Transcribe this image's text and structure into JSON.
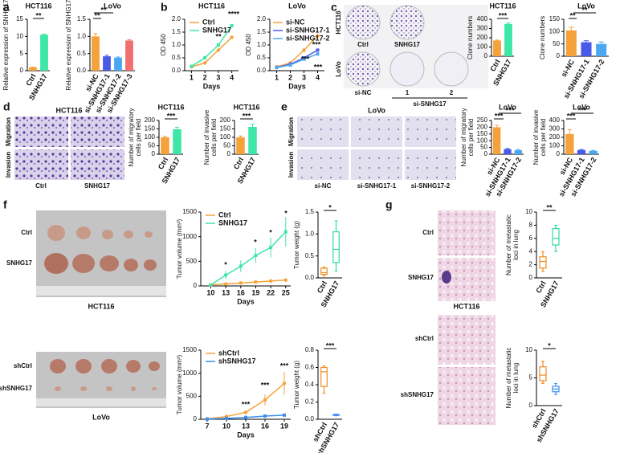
{
  "panel_labels": [
    "a",
    "b",
    "c",
    "d",
    "e",
    "f",
    "g"
  ],
  "images": {
    "c": {
      "rows": [
        "HCT116",
        "LoVo"
      ],
      "cols_top": [
        "Ctrl",
        "SNHG17"
      ],
      "cols_bottom": [
        "si-NC",
        "1",
        "2"
      ],
      "group": "si-SNHG17"
    },
    "d": {
      "title": "HCT116",
      "rows": [
        "Migration",
        "Invasion"
      ],
      "cols": [
        "Ctrl",
        "SNHG17"
      ]
    },
    "e": {
      "title": "LoVo",
      "rows": [
        "Migration",
        "Invasion"
      ],
      "cols": [
        "si-NC",
        "si-SNHG17-1",
        "si-SNHG17-2"
      ]
    },
    "f": {
      "rows_top": [
        "Ctrl",
        "SNHG17"
      ],
      "caption_top": "HCT116",
      "rows_bottom": [
        "shCtrl",
        "shSNHG17"
      ],
      "caption_bottom": "LoVo"
    },
    "g": {
      "rows_top": [
        "Ctrl",
        "SNHG17"
      ],
      "caption_top": "HCT116",
      "rows_bottom": [
        "shCtrl",
        "shSNHG17"
      ]
    }
  },
  "chart_data": [
    {
      "type": "bar",
      "title": "HCT116",
      "ylabel": "Relative expression of SNHG17",
      "categories": [
        "Ctrl",
        "SNHG17"
      ],
      "values": [
        1,
        10.5
      ],
      "errors": [
        0.05,
        0.2
      ],
      "colors": [
        "#f5a23a",
        "#3ee6a8"
      ],
      "ylim": [
        0,
        15
      ],
      "yticks": [
        0,
        5,
        10,
        15
      ],
      "annotations": [
        "**"
      ]
    },
    {
      "type": "bar",
      "title": "LoVo",
      "ylabel": "Relative expression of SNHG17",
      "categories": [
        "si-NC",
        "si-SNHG17-1",
        "si-SNHG17-2",
        "si-SNHG17-3"
      ],
      "values": [
        1.0,
        0.42,
        0.38,
        0.88
      ],
      "errors": [
        0.08,
        0.03,
        0.02,
        0.02
      ],
      "colors": [
        "#f5a23a",
        "#4a5ae8",
        "#4aa8f0",
        "#f07070"
      ],
      "ylim": [
        0,
        1.5
      ],
      "yticks": [
        {
          "value": 0,
          "label": "0.0"
        },
        {
          "value": 0.5,
          "label": "0.5"
        },
        {
          "value": 1,
          "label": "1.0"
        },
        {
          "value": 1.5,
          "label": "1.5"
        }
      ],
      "annotations": [
        "**",
        "**"
      ]
    },
    {
      "type": "line",
      "title": "HCT116",
      "ylabel": "OD 450",
      "xlabel": "Days",
      "x": [
        1,
        2,
        3,
        4
      ],
      "xlim": [
        0.5,
        4.5
      ],
      "xticks": [
        1,
        2,
        3,
        4
      ],
      "series": [
        {
          "name": "Ctrl",
          "color": "#f5a23a",
          "values": [
            0.15,
            0.3,
            0.8,
            1.3
          ],
          "errors": [
            0.02,
            0.03,
            0.04,
            0.05
          ]
        },
        {
          "name": "SNHG17",
          "color": "#3ee6a8",
          "values": [
            0.17,
            0.5,
            1.0,
            1.75
          ],
          "errors": [
            0.02,
            0.03,
            0.04,
            0.05
          ]
        }
      ],
      "ylim": [
        0,
        2
      ],
      "yticks": [
        {
          "value": 0,
          "label": "0.0"
        },
        {
          "value": 0.5,
          "label": "0.5"
        },
        {
          "value": 1,
          "label": "1.0"
        },
        {
          "value": 1.5,
          "label": "1.5"
        },
        {
          "value": 2,
          "label": "2.0"
        }
      ],
      "annotations": [
        "**",
        "****"
      ]
    },
    {
      "type": "line",
      "title": "LoVo",
      "ylabel": "OD 450",
      "xlabel": "Days",
      "x": [
        1,
        2,
        3,
        4
      ],
      "xlim": [
        0.5,
        4.5
      ],
      "xticks": [
        1,
        2,
        3,
        4
      ],
      "series": [
        {
          "name": "si-NC",
          "color": "#f5a23a",
          "values": [
            0.15,
            0.3,
            0.8,
            1.35
          ],
          "errors": [
            0.02,
            0.03,
            0.08,
            0.1
          ]
        },
        {
          "name": "si-SNHG17-1",
          "color": "#4a5ae8",
          "values": [
            0.13,
            0.25,
            0.5,
            0.8
          ],
          "errors": [
            0.02,
            0.03,
            0.05,
            0.06
          ]
        },
        {
          "name": "si-SNHG17-2",
          "color": "#4aa8f0",
          "values": [
            0.12,
            0.22,
            0.45,
            0.65
          ],
          "errors": [
            0.02,
            0.03,
            0.05,
            0.06
          ]
        }
      ],
      "ylim": [
        0,
        2
      ],
      "yticks": [
        {
          "value": 0,
          "label": "0.0"
        },
        {
          "value": 0.5,
          "label": "0.5"
        },
        {
          "value": 1,
          "label": "1.0"
        },
        {
          "value": 1.5,
          "label": "1.5"
        },
        {
          "value": 2,
          "label": "2.0"
        }
      ],
      "annotations": [
        "***",
        "***",
        "***"
      ]
    },
    {
      "type": "bar",
      "title": "HCT116",
      "ylabel": "Clone numbers",
      "categories": [
        "Ctrl",
        "SNHG17"
      ],
      "values": [
        170,
        350
      ],
      "errors": [
        5,
        10
      ],
      "colors": [
        "#f5a23a",
        "#3ee6a8"
      ],
      "ylim": [
        0,
        400
      ],
      "yticks": [
        0,
        100,
        200,
        300,
        400
      ],
      "annotations": [
        "***"
      ]
    },
    {
      "type": "bar",
      "title": "LoVo",
      "ylabel": "Clone numbers",
      "categories": [
        "si-NC",
        "si-SNHG17-1",
        "si-SNHG17-2"
      ],
      "values": [
        105,
        57,
        50
      ],
      "errors": [
        12,
        6,
        8
      ],
      "colors": [
        "#f5a23a",
        "#4a5ae8",
        "#4aa8f0"
      ],
      "ylim": [
        0,
        150
      ],
      "yticks": [
        0,
        50,
        100,
        150
      ],
      "annotations": [
        "**",
        "**"
      ]
    },
    {
      "type": "bar",
      "title": "HCT116",
      "ylabel": [
        "Number of migratory",
        "cells per field"
      ],
      "categories": [
        "Ctrl",
        "SNHG17"
      ],
      "values": [
        100,
        148
      ],
      "errors": [
        6,
        12
      ],
      "colors": [
        "#f5a23a",
        "#3ee6a8"
      ],
      "ylim": [
        0,
        200
      ],
      "yticks": [
        0,
        50,
        100,
        150,
        200
      ],
      "annotations": [
        "***"
      ]
    },
    {
      "type": "bar",
      "title": "HCT116",
      "ylabel": [
        "Number of invasive",
        "cells per field"
      ],
      "categories": [
        "Ctrl",
        "SNHG17"
      ],
      "values": [
        100,
        162
      ],
      "errors": [
        8,
        15
      ],
      "colors": [
        "#f5a23a",
        "#3ee6a8"
      ],
      "ylim": [
        0,
        200
      ],
      "yticks": [
        0,
        50,
        100,
        150,
        200
      ],
      "annotations": [
        "***"
      ]
    },
    {
      "type": "bar",
      "title": "LoVo",
      "ylabel": [
        "Number of migratory",
        "cells per field"
      ],
      "categories": [
        "si-NC",
        "si-SNHG17-1",
        "si-SNHG17-2"
      ],
      "values": [
        200,
        38,
        30
      ],
      "errors": [
        15,
        4,
        5
      ],
      "colors": [
        "#f5a23a",
        "#4a5ae8",
        "#4aa8f0"
      ],
      "ylim": [
        0,
        250
      ],
      "yticks": [
        0,
        50,
        100,
        150,
        200,
        250
      ],
      "annotations": [
        "***",
        "***"
      ]
    },
    {
      "type": "bar",
      "title": "LoVo",
      "ylabel": [
        "Number of invasive",
        "cells per field"
      ],
      "categories": [
        "si-NC",
        "si-SNHG17-1",
        "si-SNHG17-2"
      ],
      "values": [
        240,
        50,
        40
      ],
      "errors": [
        50,
        6,
        5
      ],
      "colors": [
        "#f5a23a",
        "#4a5ae8",
        "#4aa8f0"
      ],
      "ylim": [
        0,
        400
      ],
      "yticks": [
        0,
        100,
        200,
        300,
        400
      ],
      "annotations": [
        "***",
        "***"
      ]
    },
    {
      "type": "line",
      "ylabel": "Tumor volume (mm³)",
      "xlabel": "Days",
      "x": [
        10,
        13,
        16,
        19,
        22,
        25
      ],
      "xlim": [
        8,
        26
      ],
      "xticks": [
        10,
        13,
        16,
        19,
        22,
        25
      ],
      "series": [
        {
          "name": "Ctrl",
          "color": "#f5a23a",
          "values": [
            20,
            40,
            60,
            80,
            100,
            120
          ],
          "errors": [
            5,
            10,
            15,
            20,
            25,
            30
          ]
        },
        {
          "name": "SNHG17",
          "color": "#3ee6a8",
          "values": [
            20,
            220,
            400,
            620,
            780,
            1100
          ],
          "errors": [
            10,
            80,
            120,
            150,
            200,
            300
          ]
        }
      ],
      "ylim": [
        0,
        1500
      ],
      "yticks": [
        0,
        500,
        1000,
        1500
      ],
      "annotations": [
        "*",
        "*",
        "*",
        "*"
      ]
    },
    {
      "type": "box",
      "ylabel": "Tumor weight (g)",
      "categories": [
        "Ctrl",
        "SNHG17"
      ],
      "colors": [
        "#f08c1e",
        "#2edba0"
      ],
      "boxes": [
        {
          "min": 0.05,
          "q1": 0.08,
          "median": 0.12,
          "q3": 0.22,
          "max": 0.25
        },
        {
          "min": 0.15,
          "q1": 0.35,
          "median": 0.65,
          "q3": 1.05,
          "max": 1.3
        }
      ],
      "ylim": [
        0,
        1.5
      ],
      "yticks": [
        {
          "value": 0,
          "label": "0.0"
        },
        {
          "value": 0.5,
          "label": "0.5"
        },
        {
          "value": 1,
          "label": "1.0"
        },
        {
          "value": 1.5,
          "label": "1.5"
        }
      ],
      "annotations": [
        "*"
      ]
    },
    {
      "type": "line",
      "ylabel": "Tumor volume (mm³)",
      "xlabel": "Days",
      "x": [
        7,
        10,
        13,
        16,
        19
      ],
      "xlim": [
        6,
        20
      ],
      "xticks": [
        7,
        10,
        13,
        16,
        19
      ],
      "series": [
        {
          "name": "shCtrl",
          "color": "#f5a23a",
          "values": [
            10,
            60,
            150,
            420,
            780
          ],
          "errors": [
            5,
            15,
            40,
            120,
            250
          ]
        },
        {
          "name": "shSNHG17",
          "color": "#3a8ef0",
          "values": [
            5,
            20,
            40,
            70,
            90
          ],
          "errors": [
            2,
            5,
            8,
            10,
            15
          ]
        }
      ],
      "ylim": [
        0,
        1500
      ],
      "yticks": [
        0,
        500,
        1000,
        1500
      ],
      "annotations": [
        "***",
        "***",
        "***"
      ]
    },
    {
      "type": "box",
      "ylabel": "Tumor weight (g)",
      "categories": [
        "shCtrl",
        "shSNHG17"
      ],
      "colors": [
        "#f08c1e",
        "#3a8ef0"
      ],
      "boxes": [
        {
          "min": 0.3,
          "q1": 0.38,
          "median": 0.55,
          "q3": 0.6,
          "max": 0.62
        },
        {
          "min": 0.04,
          "q1": 0.045,
          "median": 0.05,
          "q3": 0.055,
          "max": 0.06
        }
      ],
      "ylim": [
        0,
        0.8
      ],
      "yticks": [
        {
          "value": 0,
          "label": "0.0"
        },
        {
          "value": 0.2,
          "label": "0.2"
        },
        {
          "value": 0.4,
          "label": "0.4"
        },
        {
          "value": 0.6,
          "label": "0.6"
        },
        {
          "value": 0.8,
          "label": "0.8"
        }
      ],
      "annotations": [
        "***"
      ]
    },
    {
      "type": "box",
      "ylabel": [
        "Number of metastatic",
        "loci in lung"
      ],
      "categories": [
        "Ctrl",
        "SNHG17"
      ],
      "colors": [
        "#f08c1e",
        "#2edba0"
      ],
      "boxes": [
        {
          "min": 1,
          "q1": 1.5,
          "median": 2.5,
          "q3": 3.2,
          "max": 4
        },
        {
          "min": 4,
          "q1": 5,
          "median": 6,
          "q3": 7.5,
          "max": 8
        }
      ],
      "ylim": [
        0,
        10
      ],
      "yticks": [
        0,
        2,
        4,
        6,
        8,
        10
      ],
      "annotations": [
        "**"
      ]
    },
    {
      "type": "box",
      "ylabel": [
        "Number of metastatic",
        "loci in lung"
      ],
      "categories": [
        "shCtrl",
        "shSNHG17"
      ],
      "colors": [
        "#f08c1e",
        "#3a8ef0"
      ],
      "boxes": [
        {
          "min": 4,
          "q1": 4.5,
          "median": 5.5,
          "q3": 7,
          "max": 8
        },
        {
          "min": 2,
          "q1": 2.5,
          "median": 3,
          "q3": 3.5,
          "max": 4
        }
      ],
      "ylim": [
        0,
        10
      ],
      "yticks": [
        0,
        5,
        10
      ],
      "annotations": [
        "*"
      ]
    }
  ]
}
